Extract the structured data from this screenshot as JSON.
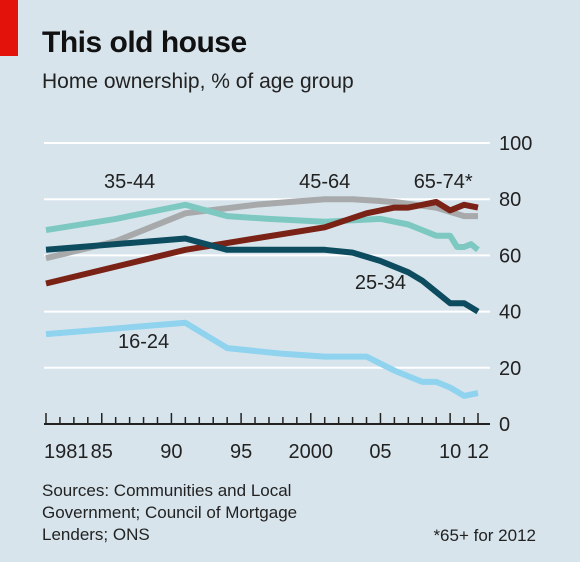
{
  "title": "This old house",
  "subtitle": "Home ownership, % of age group",
  "sources": [
    "Sources: Communities and Local",
    "Government; Council of Mortgage",
    "Lenders; ONS"
  ],
  "footnote": "*65+ for 2012",
  "colors": {
    "background": "#d7e4ec",
    "accent": "#e3120b",
    "s16_24": "#8fd3ef",
    "s25_34": "#0d4b5f",
    "s35_44": "#7dc9c2",
    "s45_64": "#a7a9ab",
    "s65_74": "#7a2216"
  },
  "chart_data": {
    "type": "line",
    "xlabel": "",
    "ylabel": "",
    "xlim": [
      1981,
      2012
    ],
    "ylim": [
      0,
      100
    ],
    "x_ticks": [
      {
        "value": 1981,
        "label": "1981"
      },
      {
        "value": 1985,
        "label": "85"
      },
      {
        "value": 1990,
        "label": "90"
      },
      {
        "value": 1995,
        "label": "95"
      },
      {
        "value": 2000,
        "label": "2000"
      },
      {
        "value": 2005,
        "label": "05"
      },
      {
        "value": 2010,
        "label": "10"
      },
      {
        "value": 2012,
        "label": "12"
      }
    ],
    "y_ticks": [
      0,
      20,
      40,
      60,
      80,
      100
    ],
    "grid": true,
    "series": [
      {
        "name": "45-64",
        "color": "#a7a9ab",
        "label_pos": [
          2001,
          84
        ],
        "points": [
          [
            1981,
            59
          ],
          [
            1986,
            65
          ],
          [
            1991,
            75
          ],
          [
            1996,
            78
          ],
          [
            2001,
            80
          ],
          [
            2003,
            80
          ],
          [
            2006,
            79
          ],
          [
            2009,
            77
          ],
          [
            2011,
            74
          ],
          [
            2012,
            74
          ]
        ]
      },
      {
        "name": "35-44",
        "color": "#7dc9c2",
        "label_pos": [
          1987,
          84
        ],
        "points": [
          [
            1981,
            69
          ],
          [
            1986,
            73
          ],
          [
            1991,
            78
          ],
          [
            1994,
            74
          ],
          [
            1997,
            73
          ],
          [
            2001,
            72
          ],
          [
            2005,
            73
          ],
          [
            2007,
            71
          ],
          [
            2008,
            69
          ],
          [
            2009,
            67
          ],
          [
            2010,
            67
          ],
          [
            2010.5,
            63
          ],
          [
            2011,
            63
          ],
          [
            2011.5,
            64
          ],
          [
            2012,
            62
          ]
        ]
      },
      {
        "name": "65-74*",
        "color": "#7a2216",
        "label_pos": [
          2009.5,
          84
        ],
        "points": [
          [
            1981,
            50
          ],
          [
            1991,
            62
          ],
          [
            1996,
            66
          ],
          [
            2001,
            70
          ],
          [
            2004,
            75
          ],
          [
            2005,
            76
          ],
          [
            2006,
            77
          ],
          [
            2007,
            77
          ],
          [
            2008,
            78
          ],
          [
            2009,
            79
          ],
          [
            2010,
            76
          ],
          [
            2011,
            78
          ],
          [
            2012,
            77
          ]
        ]
      },
      {
        "name": "25-34",
        "color": "#0d4b5f",
        "label_pos": [
          2005,
          48
        ],
        "points": [
          [
            1981,
            62
          ],
          [
            1991,
            66
          ],
          [
            1994,
            62
          ],
          [
            1997,
            62
          ],
          [
            2001,
            62
          ],
          [
            2003,
            61
          ],
          [
            2005,
            58
          ],
          [
            2007,
            54
          ],
          [
            2008,
            51
          ],
          [
            2009,
            47
          ],
          [
            2010,
            43
          ],
          [
            2011,
            43
          ],
          [
            2012,
            40
          ]
        ]
      },
      {
        "name": "16-24",
        "color": "#8fd3ef",
        "label_pos": [
          1988,
          27
        ],
        "points": [
          [
            1981,
            32
          ],
          [
            1991,
            36
          ],
          [
            1994,
            27
          ],
          [
            1998,
            25
          ],
          [
            2001,
            24
          ],
          [
            2004,
            24
          ],
          [
            2006,
            19
          ],
          [
            2008,
            15
          ],
          [
            2009,
            15
          ],
          [
            2010,
            13
          ],
          [
            2011,
            10
          ],
          [
            2012,
            11
          ]
        ]
      }
    ]
  }
}
